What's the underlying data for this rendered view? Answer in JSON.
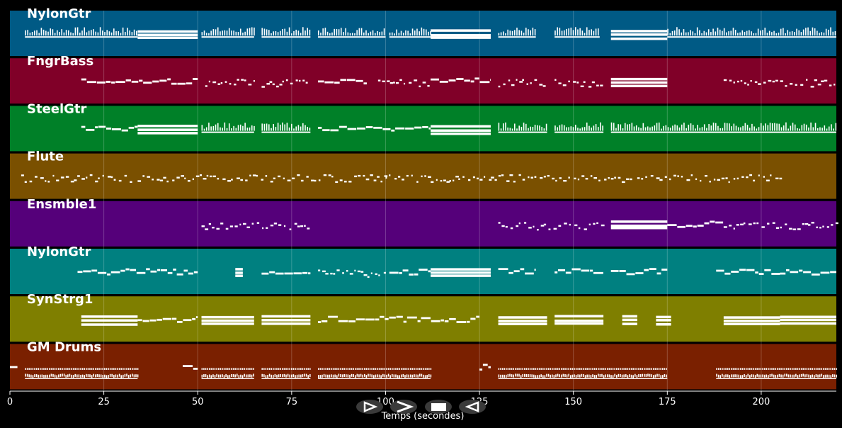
{
  "chart_data": {
    "type": "piano-roll",
    "xlabel": "Temps (secondes)",
    "xlim": [
      0,
      220
    ],
    "x_ticks": [
      0,
      25,
      50,
      75,
      100,
      125,
      150,
      175,
      200
    ],
    "grid": true,
    "note_color": "#ffffff",
    "tracks": [
      {
        "name": "NylonGtr",
        "color": "#005a85",
        "segments": [
          [
            4,
            34,
            "dense"
          ],
          [
            34,
            50,
            "block"
          ],
          [
            51,
            65,
            "dense"
          ],
          [
            67,
            80,
            "dense"
          ],
          [
            82,
            100,
            "dense"
          ],
          [
            101,
            112,
            "dense"
          ],
          [
            112,
            128,
            "block"
          ],
          [
            130,
            140,
            "dense"
          ],
          [
            145,
            157,
            "dense"
          ],
          [
            160,
            175,
            "block"
          ],
          [
            175,
            190,
            "dense"
          ],
          [
            190,
            220,
            "dense"
          ]
        ]
      },
      {
        "name": "FngrBass",
        "color": "#800028",
        "segments": [
          [
            19,
            50,
            "line"
          ],
          [
            52,
            65,
            "sparse"
          ],
          [
            67,
            80,
            "sparse"
          ],
          [
            82,
            95,
            "line"
          ],
          [
            98,
            112,
            "sparse"
          ],
          [
            112,
            128,
            "line"
          ],
          [
            130,
            142,
            "sparse"
          ],
          [
            145,
            158,
            "sparse"
          ],
          [
            160,
            175,
            "block"
          ],
          [
            190,
            220,
            "sparse"
          ]
        ]
      },
      {
        "name": "SteelGtr",
        "color": "#008028",
        "segments": [
          [
            19,
            34,
            "line"
          ],
          [
            34,
            50,
            "block"
          ],
          [
            51,
            65,
            "dense"
          ],
          [
            67,
            80,
            "dense"
          ],
          [
            82,
            112,
            "line"
          ],
          [
            112,
            128,
            "block"
          ],
          [
            130,
            143,
            "dense"
          ],
          [
            145,
            158,
            "dense"
          ],
          [
            160,
            220,
            "dense"
          ]
        ]
      },
      {
        "name": "Flute",
        "color": "#7a5000",
        "segments": [
          [
            3,
            32,
            "sparse"
          ],
          [
            34,
            100,
            "sparse"
          ],
          [
            100,
            112,
            "sparse"
          ],
          [
            112,
            128,
            "sparse"
          ],
          [
            128,
            160,
            "sparse"
          ],
          [
            160,
            165,
            "sparse"
          ],
          [
            167,
            205,
            "sparse"
          ]
        ]
      },
      {
        "name": "Ensmble1",
        "color": "#55007a",
        "segments": [
          [
            51,
            80,
            "sparse"
          ],
          [
            130,
            158,
            "sparse"
          ],
          [
            160,
            175,
            "block"
          ],
          [
            175,
            190,
            "line"
          ],
          [
            190,
            220,
            "sparse"
          ]
        ]
      },
      {
        "name": "NylonGtr",
        "color": "#008080",
        "segments": [
          [
            18,
            50,
            "line"
          ],
          [
            60,
            62,
            "block"
          ],
          [
            67,
            80,
            "line"
          ],
          [
            82,
            100,
            "sparse"
          ],
          [
            101,
            112,
            "line"
          ],
          [
            112,
            128,
            "block"
          ],
          [
            130,
            140,
            "line"
          ],
          [
            145,
            158,
            "line"
          ],
          [
            160,
            175,
            "line"
          ],
          [
            188,
            205,
            "line"
          ],
          [
            205,
            220,
            "line"
          ]
        ]
      },
      {
        "name": "SynStrg1",
        "color": "#7f7f00",
        "segments": [
          [
            19,
            34,
            "block"
          ],
          [
            34,
            50,
            "line"
          ],
          [
            51,
            65,
            "block"
          ],
          [
            67,
            80,
            "block"
          ],
          [
            82,
            125,
            "line"
          ],
          [
            130,
            143,
            "block"
          ],
          [
            145,
            158,
            "block"
          ],
          [
            163,
            167,
            "block"
          ],
          [
            172,
            176,
            "block"
          ],
          [
            190,
            205,
            "block"
          ],
          [
            205,
            220,
            "block"
          ]
        ]
      },
      {
        "name": "GM Drums",
        "color": "#7a2000",
        "segments": [
          [
            0,
            2,
            "line"
          ],
          [
            4,
            34,
            "drums"
          ],
          [
            46,
            50,
            "line"
          ],
          [
            51,
            65,
            "drums"
          ],
          [
            67,
            80,
            "drums"
          ],
          [
            82,
            112,
            "drums"
          ],
          [
            125,
            128,
            "line"
          ],
          [
            130,
            175,
            "drums"
          ],
          [
            188,
            220,
            "drums"
          ]
        ]
      }
    ]
  },
  "controls": [
    {
      "name": "play-outline-button",
      "icon": "play-outline-icon"
    },
    {
      "name": "fast-forward-button",
      "icon": "chevron-right-icon"
    },
    {
      "name": "stop-button",
      "icon": "stop-icon"
    },
    {
      "name": "rewind-button",
      "icon": "play-left-icon"
    }
  ]
}
